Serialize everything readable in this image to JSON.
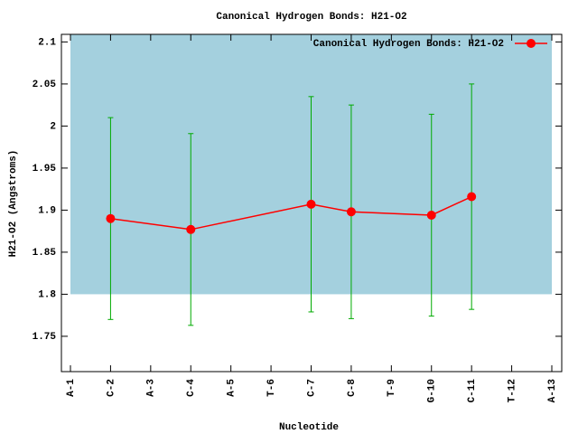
{
  "chart_data": {
    "type": "line",
    "title": "Canonical Hydrogen Bonds: H21-O2",
    "x_label": "Nucleotide",
    "y_label": "H21-O2 (Angstroms)",
    "categories": [
      "A-1",
      "C-2",
      "A-3",
      "C-4",
      "A-5",
      "T-6",
      "C-7",
      "C-8",
      "T-9",
      "G-10",
      "C-11",
      "T-12",
      "A-13"
    ],
    "ylim": [
      1.708,
      2.109
    ],
    "yticks": [
      1.75,
      1.8,
      1.85,
      1.9,
      1.95,
      2,
      2.05,
      2.1
    ],
    "shade_ylim": [
      1.8,
      2.109
    ],
    "shade_color": "#a4d0de",
    "legend": "top-right",
    "series": [
      {
        "name": "Canonical Hydrogen Bonds: H21-O2",
        "color": "#ff0000",
        "error_color": "#00aa00",
        "x": [
          "C-2",
          "C-4",
          "C-7",
          "C-8",
          "G-10",
          "C-11"
        ],
        "values": [
          1.89,
          1.877,
          1.907,
          1.898,
          1.894,
          1.916
        ],
        "errors": [
          0.12,
          0.114,
          0.128,
          0.127,
          0.12,
          0.134
        ]
      }
    ]
  }
}
